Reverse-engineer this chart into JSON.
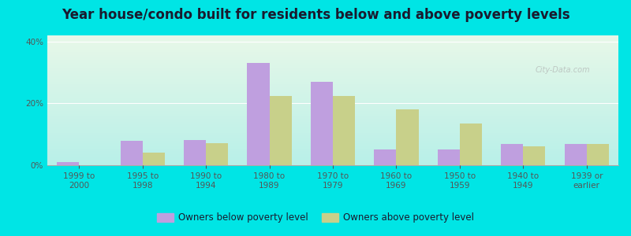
{
  "title": "Year house/condo built for residents below and above poverty levels",
  "categories": [
    "1999 to\n2000",
    "1995 to\n1998",
    "1990 to\n1994",
    "1980 to\n1989",
    "1970 to\n1979",
    "1960 to\n1969",
    "1950 to\n1959",
    "1940 to\n1949",
    "1939 or\nearlier"
  ],
  "below_poverty": [
    1.0,
    8.0,
    8.2,
    33.0,
    27.0,
    5.0,
    5.0,
    7.0,
    7.0
  ],
  "above_poverty": [
    0.0,
    4.0,
    7.2,
    22.5,
    22.5,
    18.0,
    13.5,
    6.0,
    7.0
  ],
  "below_color": "#bf9fdf",
  "above_color": "#c8d08a",
  "bg_color_top": "#e8f8e8",
  "bg_color_bottom": "#b8f0e8",
  "outer_bg": "#00e5e5",
  "ylim": [
    0,
    42
  ],
  "yticks": [
    0,
    20,
    40
  ],
  "ytick_labels": [
    "0%",
    "20%",
    "40%"
  ],
  "bar_width": 0.35,
  "legend_below_label": "Owners below poverty level",
  "legend_above_label": "Owners above poverty level",
  "title_fontsize": 12,
  "tick_fontsize": 7.5,
  "legend_fontsize": 8.5
}
